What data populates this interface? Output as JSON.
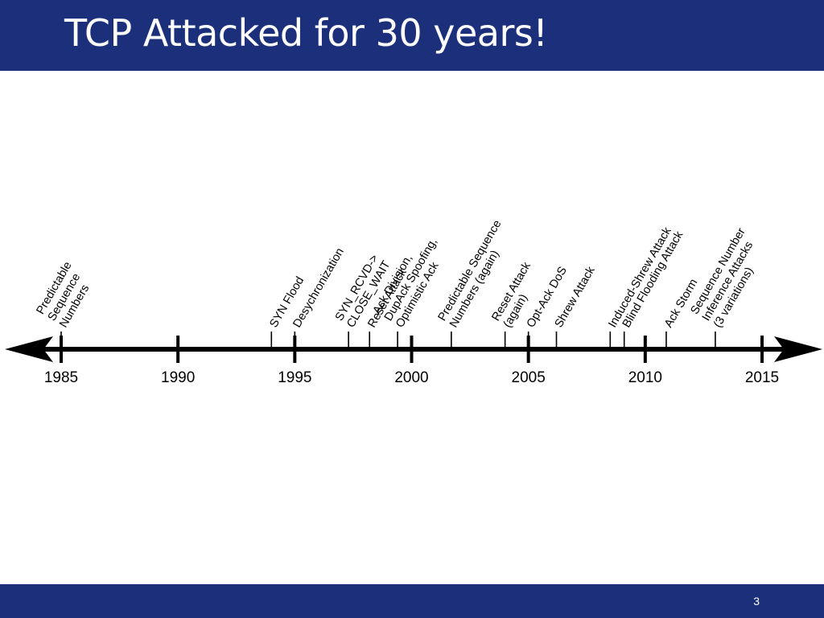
{
  "slide": {
    "title": "TCP Attacked for 30 years!",
    "page_number": "3",
    "colors": {
      "bar": "#1b2f7a",
      "title_text": "#ffffff",
      "timeline": "#000000"
    }
  },
  "timeline": {
    "year_range": [
      1985,
      2015
    ],
    "tick_years": [
      1985,
      1990,
      1995,
      2000,
      2005,
      2010,
      2015
    ],
    "tick_labels": [
      "1985",
      "1990",
      "1995",
      "2000",
      "2005",
      "2010",
      "2015"
    ],
    "events": [
      {
        "year": 1985,
        "lines": [
          "Predictable",
          "Sequence",
          "Numbers"
        ]
      },
      {
        "year": 1994,
        "lines": [
          "SYN Flood"
        ]
      },
      {
        "year": 1995,
        "lines": [
          "Desychronization"
        ]
      },
      {
        "year": 1997.3,
        "lines": [
          "SYN_RCVD->",
          "CLOSE_WAIT"
        ]
      },
      {
        "year": 1998.2,
        "lines": [
          "Reset Attack"
        ]
      },
      {
        "year": 1999.4,
        "lines": [
          "Ack Division,",
          "DupAck Spoofing,",
          "Optimistic Ack"
        ]
      },
      {
        "year": 2001.7,
        "lines": [
          "Predictable Sequence",
          "Numbers (again)"
        ]
      },
      {
        "year": 2004,
        "lines": [
          "Reset Attack",
          "(again)"
        ]
      },
      {
        "year": 2005,
        "lines": [
          "Opt-Ack DoS"
        ]
      },
      {
        "year": 2006.2,
        "lines": [
          "Shrew Attack"
        ]
      },
      {
        "year": 2008.5,
        "lines": [
          "Induced-Shrew Attack"
        ]
      },
      {
        "year": 2009.1,
        "lines": [
          "Blind Flooding Attack"
        ]
      },
      {
        "year": 2010.9,
        "lines": [
          "Ack Storm"
        ]
      },
      {
        "year": 2013,
        "lines": [
          "Sequence Number",
          "Inference Attacks",
          "(3 variations)"
        ]
      }
    ]
  }
}
